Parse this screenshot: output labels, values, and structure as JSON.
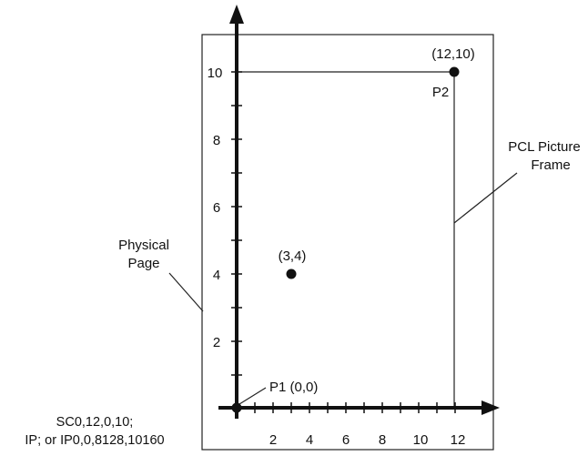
{
  "axes": {
    "y_ticks": [
      "2",
      "4",
      "6",
      "8",
      "10"
    ],
    "x_ticks": [
      "2",
      "4",
      "6",
      "8",
      "10",
      "12"
    ]
  },
  "points": [
    {
      "id": "origin",
      "x": 0,
      "y": 0,
      "label": "P1 (0,0)"
    },
    {
      "id": "mid",
      "x": 3,
      "y": 4,
      "label": "(3,4)"
    },
    {
      "id": "p2",
      "x": 12,
      "y": 10,
      "coord_label": "(12,10)",
      "name_label": "P2"
    }
  ],
  "callouts": {
    "physical_page": [
      "Physical",
      "Page"
    ],
    "pcl_frame": [
      "PCL Picture",
      "Frame"
    ]
  },
  "commands": [
    "SC0,12,0,10;",
    "IP; or IP0,0,8128,10160"
  ]
}
